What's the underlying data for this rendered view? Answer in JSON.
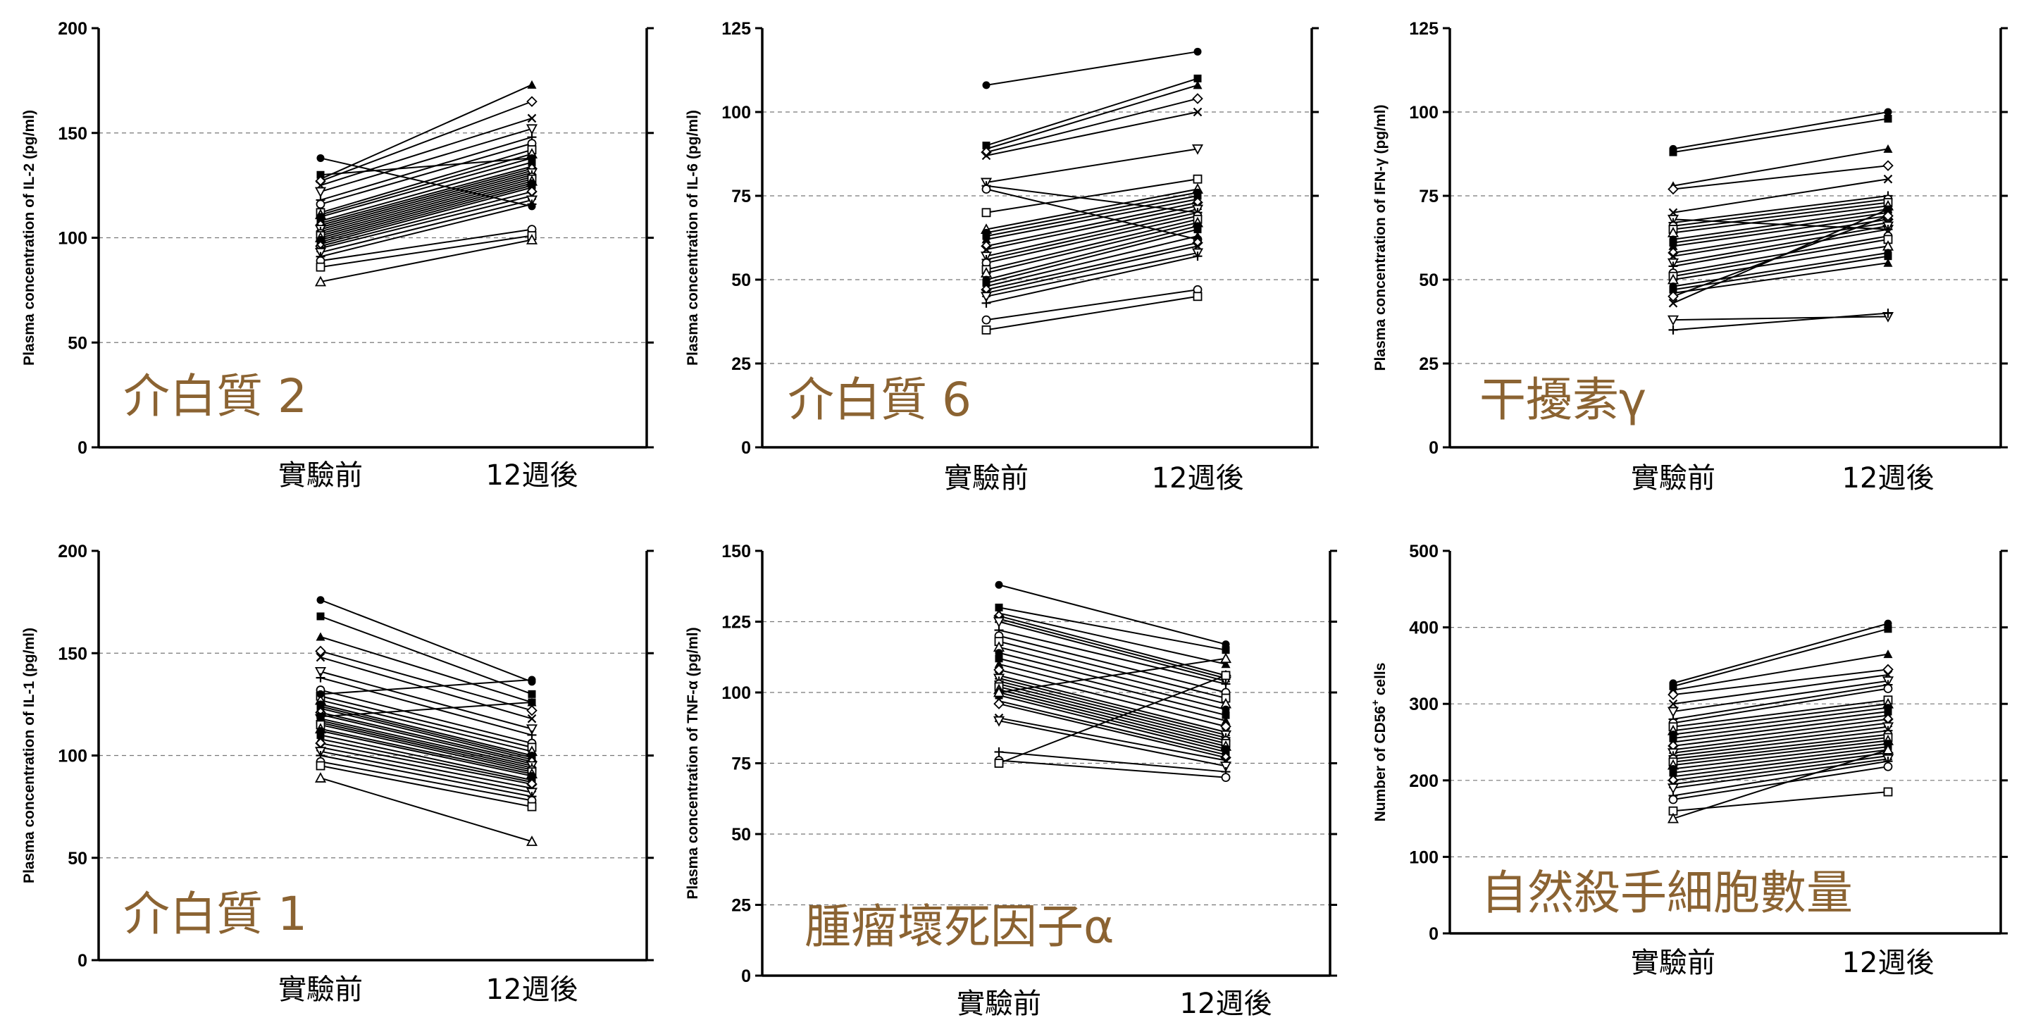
{
  "colors": {
    "annotation": "#8B6332",
    "line": "#000000",
    "grid": "#777777"
  },
  "categories": [
    "實驗前",
    "12週後"
  ],
  "chart_data": [
    {
      "type": "line",
      "annotation": "介白質 2",
      "ylabel": "Plasma concentration of IL-2 (pg/ml)",
      "ylim": [
        0,
        200
      ],
      "yticks": [
        0,
        50,
        100,
        150,
        200
      ],
      "grid": true,
      "categories": [
        "實驗前",
        "12週後"
      ],
      "series": [
        {
          "values": [
            138,
            115
          ]
        },
        {
          "values": [
            130,
            138
          ]
        },
        {
          "values": [
            128,
            173
          ]
        },
        {
          "values": [
            127,
            165
          ]
        },
        {
          "values": [
            125,
            157
          ]
        },
        {
          "values": [
            122,
            152
          ]
        },
        {
          "values": [
            118,
            148
          ]
        },
        {
          "values": [
            116,
            145
          ]
        },
        {
          "values": [
            112,
            142
          ]
        },
        {
          "values": [
            111,
            140
          ]
        },
        {
          "values": [
            110,
            138
          ]
        },
        {
          "values": [
            108,
            136
          ]
        },
        {
          "values": [
            107,
            134
          ]
        },
        {
          "values": [
            106,
            133
          ]
        },
        {
          "values": [
            105,
            132
          ]
        },
        {
          "values": [
            104,
            131
          ]
        },
        {
          "values": [
            103,
            130
          ]
        },
        {
          "values": [
            102,
            129
          ]
        },
        {
          "values": [
            101,
            128
          ]
        },
        {
          "values": [
            100,
            127
          ]
        },
        {
          "values": [
            99,
            126
          ]
        },
        {
          "values": [
            98,
            125
          ]
        },
        {
          "values": [
            97,
            124
          ]
        },
        {
          "values": [
            96,
            122
          ]
        },
        {
          "values": [
            95,
            120
          ]
        },
        {
          "values": [
            93,
            118
          ]
        },
        {
          "values": [
            91,
            116
          ]
        },
        {
          "values": [
            89,
            104
          ]
        },
        {
          "values": [
            86,
            101
          ]
        },
        {
          "values": [
            79,
            99
          ]
        }
      ]
    },
    {
      "type": "line",
      "annotation": "介白質 6",
      "ylabel": "Plasma concentration of IL-6 (pg/ml)",
      "ylim": [
        0,
        125
      ],
      "yticks": [
        0,
        25,
        50,
        75,
        100,
        125
      ],
      "grid": true,
      "categories": [
        "實驗前",
        "12週後"
      ],
      "series": [
        {
          "values": [
            108,
            118
          ]
        },
        {
          "values": [
            90,
            110
          ]
        },
        {
          "values": [
            89,
            108
          ]
        },
        {
          "values": [
            88,
            104
          ]
        },
        {
          "values": [
            87,
            100
          ]
        },
        {
          "values": [
            79,
            89
          ]
        },
        {
          "values": [
            78,
            70
          ]
        },
        {
          "values": [
            77,
            62
          ]
        },
        {
          "values": [
            70,
            80
          ]
        },
        {
          "values": [
            65,
            77
          ]
        },
        {
          "values": [
            64,
            76
          ]
        },
        {
          "values": [
            63,
            75
          ]
        },
        {
          "values": [
            62,
            74
          ]
        },
        {
          "values": [
            60,
            73
          ]
        },
        {
          "values": [
            59,
            72
          ]
        },
        {
          "values": [
            57,
            71
          ]
        },
        {
          "values": [
            56,
            70
          ]
        },
        {
          "values": [
            55,
            69
          ]
        },
        {
          "values": [
            53,
            68
          ]
        },
        {
          "values": [
            52,
            67
          ]
        },
        {
          "values": [
            50,
            66
          ]
        },
        {
          "values": [
            49,
            65
          ]
        },
        {
          "values": [
            48,
            63
          ]
        },
        {
          "values": [
            47,
            61
          ]
        },
        {
          "values": [
            46,
            60
          ]
        },
        {
          "values": [
            45,
            58
          ]
        },
        {
          "values": [
            43,
            57
          ]
        },
        {
          "values": [
            38,
            47
          ]
        },
        {
          "values": [
            35,
            45
          ]
        }
      ]
    },
    {
      "type": "line",
      "annotation": "干擾素γ",
      "ylabel": "Plasma concentration of IFN-γ (pg/ml)",
      "ylim": [
        0,
        125
      ],
      "yticks": [
        0,
        25,
        50,
        75,
        100,
        125
      ],
      "grid": true,
      "categories": [
        "實驗前",
        "12週後"
      ],
      "series": [
        {
          "values": [
            89,
            100
          ]
        },
        {
          "values": [
            88,
            98
          ]
        },
        {
          "values": [
            78,
            89
          ]
        },
        {
          "values": [
            77,
            84
          ]
        },
        {
          "values": [
            70,
            80
          ]
        },
        {
          "values": [
            68,
            65
          ]
        },
        {
          "values": [
            67,
            75
          ]
        },
        {
          "values": [
            66,
            74
          ]
        },
        {
          "values": [
            65,
            73
          ]
        },
        {
          "values": [
            64,
            72
          ]
        },
        {
          "values": [
            62,
            71
          ]
        },
        {
          "values": [
            61,
            70
          ]
        },
        {
          "values": [
            60,
            69
          ]
        },
        {
          "values": [
            58,
            68
          ]
        },
        {
          "values": [
            57,
            67
          ]
        },
        {
          "values": [
            55,
            66
          ]
        },
        {
          "values": [
            54,
            65
          ]
        },
        {
          "values": [
            52,
            63
          ]
        },
        {
          "values": [
            51,
            62
          ]
        },
        {
          "values": [
            50,
            60
          ]
        },
        {
          "values": [
            48,
            58
          ]
        },
        {
          "values": [
            47,
            57
          ]
        },
        {
          "values": [
            46,
            55
          ]
        },
        {
          "values": [
            45,
            69
          ]
        },
        {
          "values": [
            43,
            71
          ]
        },
        {
          "values": [
            38,
            39
          ]
        },
        {
          "values": [
            35,
            40
          ]
        }
      ]
    },
    {
      "type": "line",
      "annotation": "介白質 1",
      "ylabel": "Plasma concentration of IL-1 (pg/ml)",
      "ylim": [
        0,
        200
      ],
      "yticks": [
        0,
        50,
        100,
        150,
        200
      ],
      "grid": true,
      "categories": [
        "實驗前",
        "12週後"
      ],
      "series": [
        {
          "values": [
            176,
            136
          ]
        },
        {
          "values": [
            168,
            130
          ]
        },
        {
          "values": [
            158,
            126
          ]
        },
        {
          "values": [
            151,
            122
          ]
        },
        {
          "values": [
            148,
            118
          ]
        },
        {
          "values": [
            141,
            113
          ]
        },
        {
          "values": [
            138,
            110
          ]
        },
        {
          "values": [
            132,
            106
          ]
        },
        {
          "values": [
            129,
            104
          ]
        },
        {
          "values": [
            127,
            102
          ]
        },
        {
          "values": [
            125,
            100
          ]
        },
        {
          "values": [
            124,
            99
          ]
        },
        {
          "values": [
            123,
            98
          ]
        },
        {
          "values": [
            121,
            97
          ]
        },
        {
          "values": [
            120,
            96
          ]
        },
        {
          "values": [
            118,
            95
          ]
        },
        {
          "values": [
            117,
            94
          ]
        },
        {
          "values": [
            116,
            93
          ]
        },
        {
          "values": [
            115,
            92
          ]
        },
        {
          "values": [
            113,
            91
          ]
        },
        {
          "values": [
            112,
            90
          ]
        },
        {
          "values": [
            110,
            88
          ]
        },
        {
          "values": [
            108,
            87
          ]
        },
        {
          "values": [
            106,
            86
          ]
        },
        {
          "values": [
            104,
            84
          ]
        },
        {
          "values": [
            102,
            82
          ]
        },
        {
          "values": [
            100,
            80
          ]
        },
        {
          "values": [
            97,
            78
          ]
        },
        {
          "values": [
            95,
            75
          ]
        },
        {
          "values": [
            89,
            58
          ]
        },
        {
          "values": [
            130,
            137
          ]
        },
        {
          "values": [
            119,
            126
          ]
        }
      ]
    },
    {
      "type": "line",
      "annotation": "腫瘤壞死因子α",
      "ylabel": "Plasma concentration of TNF-α (pg/ml)",
      "ylim": [
        0,
        150
      ],
      "yticks": [
        0,
        25,
        50,
        75,
        100,
        125,
        150
      ],
      "grid": true,
      "categories": [
        "實驗前",
        "12週後"
      ],
      "series": [
        {
          "values": [
            138,
            117
          ]
        },
        {
          "values": [
            130,
            115
          ]
        },
        {
          "values": [
            128,
            110
          ]
        },
        {
          "values": [
            127,
            106
          ]
        },
        {
          "values": [
            126,
            105
          ]
        },
        {
          "values": [
            125,
            104
          ]
        },
        {
          "values": [
            122,
            103
          ]
        },
        {
          "values": [
            120,
            100
          ]
        },
        {
          "values": [
            118,
            98
          ]
        },
        {
          "values": [
            116,
            96
          ]
        },
        {
          "values": [
            114,
            94
          ]
        },
        {
          "values": [
            112,
            92
          ]
        },
        {
          "values": [
            110,
            90
          ]
        },
        {
          "values": [
            108,
            88
          ]
        },
        {
          "values": [
            106,
            86
          ]
        },
        {
          "values": [
            105,
            85
          ]
        },
        {
          "values": [
            104,
            84
          ]
        },
        {
          "values": [
            103,
            83
          ]
        },
        {
          "values": [
            102,
            82
          ]
        },
        {
          "values": [
            101,
            81
          ]
        },
        {
          "values": [
            100,
            80
          ]
        },
        {
          "values": [
            99,
            79
          ]
        },
        {
          "values": [
            97,
            78
          ]
        },
        {
          "values": [
            96,
            77
          ]
        },
        {
          "values": [
            91,
            76
          ]
        },
        {
          "values": [
            90,
            74
          ]
        },
        {
          "values": [
            79,
            72
          ]
        },
        {
          "values": [
            76,
            70
          ]
        },
        {
          "values": [
            75,
            106
          ]
        },
        {
          "values": [
            100,
            112
          ]
        }
      ]
    },
    {
      "type": "line",
      "annotation": "自然殺手細胞數量",
      "ylabel": "Number of CD56",
      "ylabel_sup": "+",
      "ylabel_tail": " cells",
      "ylim": [
        0,
        500
      ],
      "yticks": [
        0,
        100,
        200,
        300,
        400,
        500
      ],
      "grid": true,
      "categories": [
        "實驗前",
        "12週後"
      ],
      "series": [
        {
          "values": [
            327,
            405
          ]
        },
        {
          "values": [
            323,
            398
          ]
        },
        {
          "values": [
            318,
            365
          ]
        },
        {
          "values": [
            312,
            345
          ]
        },
        {
          "values": [
            300,
            338
          ]
        },
        {
          "values": [
            290,
            330
          ]
        },
        {
          "values": [
            280,
            325
          ]
        },
        {
          "values": [
            275,
            320
          ]
        },
        {
          "values": [
            270,
            305
          ]
        },
        {
          "values": [
            265,
            300
          ]
        },
        {
          "values": [
            260,
            295
          ]
        },
        {
          "values": [
            255,
            290
          ]
        },
        {
          "values": [
            250,
            285
          ]
        },
        {
          "values": [
            245,
            280
          ]
        },
        {
          "values": [
            240,
            275
          ]
        },
        {
          "values": [
            236,
            270
          ]
        },
        {
          "values": [
            232,
            265
          ]
        },
        {
          "values": [
            228,
            260
          ]
        },
        {
          "values": [
            224,
            256
          ]
        },
        {
          "values": [
            220,
            252
          ]
        },
        {
          "values": [
            215,
            248
          ]
        },
        {
          "values": [
            210,
            244
          ]
        },
        {
          "values": [
            205,
            240
          ]
        },
        {
          "values": [
            200,
            236
          ]
        },
        {
          "values": [
            195,
            232
          ]
        },
        {
          "values": [
            190,
            228
          ]
        },
        {
          "values": [
            180,
            225
          ]
        },
        {
          "values": [
            175,
            218
          ]
        },
        {
          "values": [
            160,
            185
          ]
        },
        {
          "values": [
            150,
            240
          ]
        }
      ]
    }
  ]
}
